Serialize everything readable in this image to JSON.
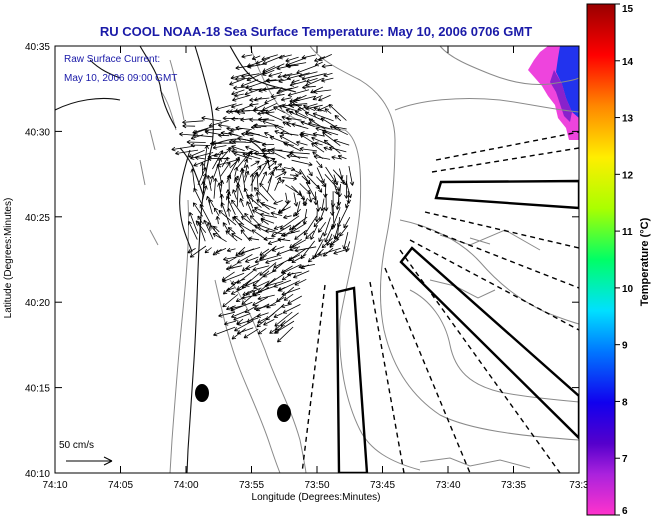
{
  "title": "RU COOL  NOAA-18  Sea Surface Temperature:  May 10, 2006 0706 GMT",
  "title_color": "#1a1aa8",
  "annotation_color": "#1a1aa8",
  "annotation_line1": "Raw Surface Current:",
  "annotation_line2": "May 10, 2006 09:00 GMT",
  "scale_label": "50 cm/s",
  "x_axis_label": "Longitude (Degrees:Minutes)",
  "y_axis_label": "Latitude (Degrees:Minutes)",
  "x_ticks": [
    "74:10",
    "74:05",
    "74:00",
    "73:55",
    "73:50",
    "73:45",
    "73:40",
    "73:35",
    "73:3"
  ],
  "y_ticks": [
    "40:35",
    "40:30",
    "40:25",
    "40:20",
    "40:15",
    "40:10"
  ],
  "colorbar": {
    "label": "Temperature (°C)",
    "min": 6,
    "max": 15,
    "ticks": [
      "15",
      "14",
      "13",
      "12",
      "11",
      "10",
      "9",
      "8",
      "7",
      "6"
    ],
    "stops": [
      "#ff33cc",
      "#8800cc",
      "#1100ee",
      "#0077ff",
      "#00e0ff",
      "#00ff66",
      "#aaff00",
      "#ffee00",
      "#ff8800",
      "#ff0000",
      "#990000"
    ]
  }
}
